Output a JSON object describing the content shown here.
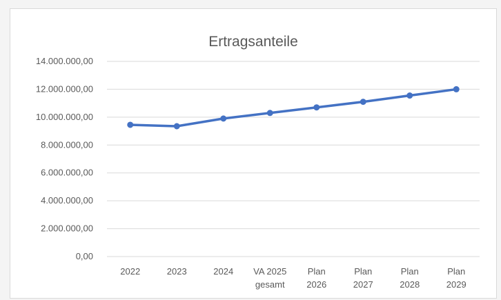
{
  "chart_data": {
    "type": "line",
    "title": "Ertragsanteile",
    "xlabel": "",
    "ylabel": "",
    "categories": [
      [
        "2022"
      ],
      [
        "2023"
      ],
      [
        "2024"
      ],
      [
        "VA 2025",
        "gesamt"
      ],
      [
        "Plan",
        "2026"
      ],
      [
        "Plan",
        "2027"
      ],
      [
        "Plan",
        "2028"
      ],
      [
        "Plan",
        "2029"
      ]
    ],
    "series": [
      {
        "values": [
          9450000,
          9350000,
          9900000,
          10300000,
          10700000,
          11100000,
          11550000,
          12000000
        ],
        "color": "#4472c4"
      }
    ],
    "ylim": [
      0,
      14000000
    ],
    "yticks": [
      0,
      2000000,
      4000000,
      6000000,
      8000000,
      10000000,
      12000000,
      14000000
    ],
    "ytick_labels": [
      "0,00",
      "2.000.000,00",
      "4.000.000,00",
      "6.000.000,00",
      "8.000.000,00",
      "10.000.000,00",
      "12.000.000,00",
      "14.000.000,00"
    ],
    "grid": true,
    "legend": "none",
    "gridline_color": "#d9d9d9"
  }
}
